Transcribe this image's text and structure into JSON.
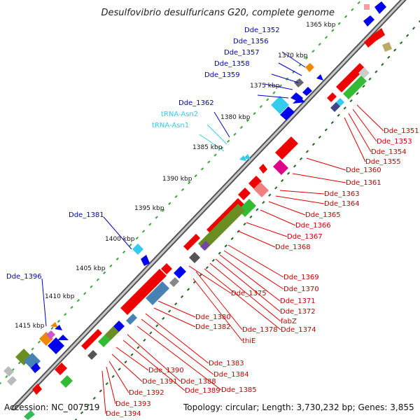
{
  "title": "Desulfovibrio desulfuricans G20, complete genome",
  "footer": {
    "accession": "Accession: NC_007519",
    "topology": "Topology: circular; Length: 3,730,232 bp; Genes: 3,855"
  },
  "kbp_markers": [
    "1365 kbp",
    "1370 kbp",
    "1375 kbp",
    "1380 kbp",
    "1385 kbp",
    "1390 kbp",
    "1395 kbp",
    "1400 kbp",
    "1405 kbp",
    "1410 kbp",
    "1415 kbp"
  ],
  "left_labels": [
    {
      "text": "Dde_1352",
      "kind": "gene"
    },
    {
      "text": "Dde_1356",
      "kind": "gene"
    },
    {
      "text": "Dde_1357",
      "kind": "gene"
    },
    {
      "text": "Dde_1358",
      "kind": "gene"
    },
    {
      "text": "Dde_1359",
      "kind": "gene"
    },
    {
      "text": "Dde_1362",
      "kind": "gene"
    },
    {
      "text": "tRNA-Asn2",
      "kind": "trna"
    },
    {
      "text": "tRNA-Asn1",
      "kind": "trna"
    },
    {
      "text": "Dde_1381",
      "kind": "gene"
    },
    {
      "text": "Dde_1396",
      "kind": "gene"
    }
  ],
  "right_labels": [
    "Dde_1351",
    "Dde_1353",
    "Dde_1354",
    "Dde_1355",
    "Dde_1360",
    "Dde_1361",
    "Dde_1363",
    "Dde_1364",
    "Dde_1365",
    "Dde_1366",
    "Dde_1367",
    "Dde_1368",
    "Dde_1369",
    "Dde_1370",
    "Dde_1371",
    "Dde_1372",
    "fabZ",
    "Dde_1374",
    "Dde_1375",
    "Dde_1378",
    "thiE",
    "Dde_1380",
    "Dde_1382",
    "Dde_1383",
    "Dde_1384",
    "Dde_1385",
    "Dde_1388",
    "Dde_1389",
    "Dde_1390",
    "Dde_1391",
    "Dde_1392",
    "Dde_1393",
    "Dde_1394"
  ],
  "colors": {
    "forward_gene": "#0000ee",
    "reverse_gene": "#ee0000",
    "trna": "#33ccee",
    "backbone": "#888888",
    "tick_outer": "#33aa33",
    "tick_inner": "#226622"
  }
}
